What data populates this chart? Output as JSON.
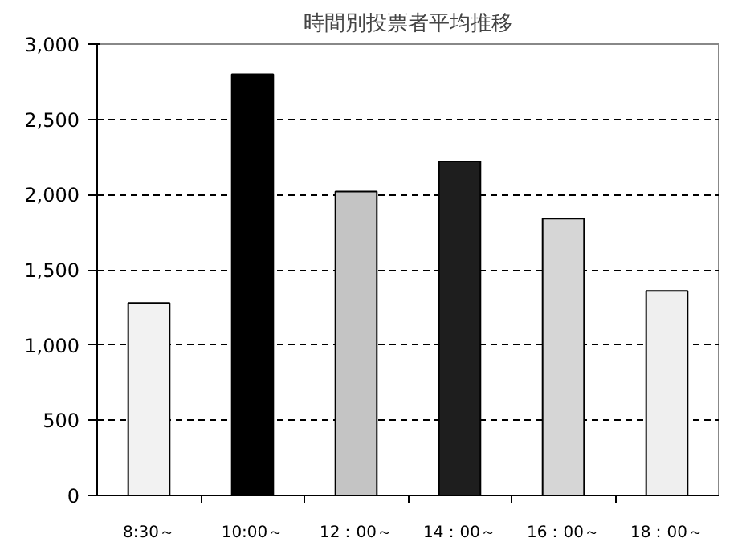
{
  "chart_data": {
    "type": "bar",
    "title": "時間別投票者平均推移",
    "categories": [
      "8:30～",
      "10:00～",
      "12：00～",
      "14：00～",
      "16：00～",
      "18：00～"
    ],
    "values": [
      1280,
      2800,
      2020,
      2220,
      1840,
      1360
    ],
    "colors": [
      "#f2f2f2",
      "#000000",
      "#c4c4c4",
      "#1e1e1e",
      "#d6d6d6",
      "#efefef"
    ],
    "ylim": [
      0,
      3000
    ],
    "yticks": [
      {
        "value": 0,
        "label": "0"
      },
      {
        "value": 500,
        "label": "500"
      },
      {
        "value": 1000,
        "label": "1,000"
      },
      {
        "value": 1500,
        "label": "1,500"
      },
      {
        "value": 2000,
        "label": "2,000"
      },
      {
        "value": 2500,
        "label": "2,500"
      },
      {
        "value": 3000,
        "label": "3,000"
      }
    ],
    "grid": "y"
  }
}
